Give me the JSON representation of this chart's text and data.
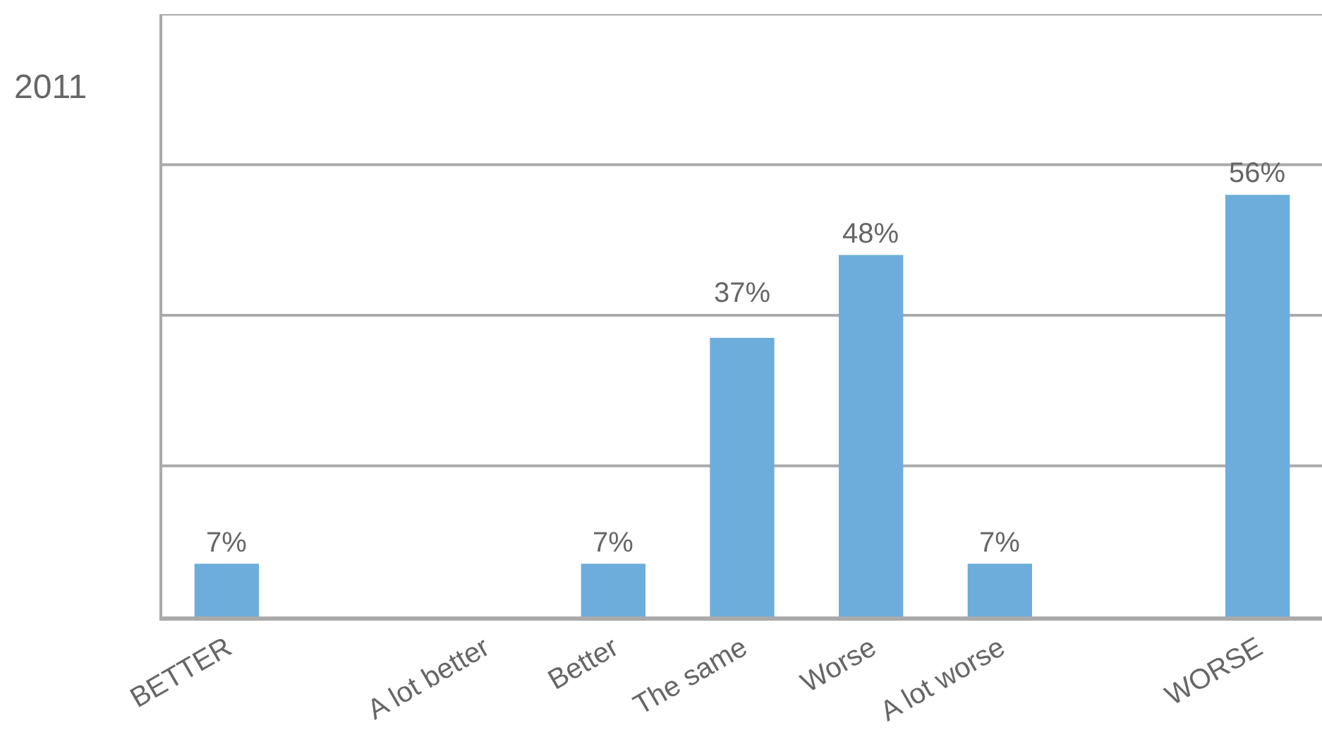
{
  "chart_data": {
    "type": "bar",
    "title": "2011",
    "categories": [
      "BETTER",
      null,
      "A lot better",
      "Better",
      "The same",
      "Worse",
      "A lot worse",
      null,
      "WORSE"
    ],
    "values": [
      7,
      null,
      null,
      7,
      37,
      48,
      7,
      null,
      56
    ],
    "value_labels": [
      "7%",
      null,
      null,
      "7%",
      "37%",
      "48%",
      "7%",
      null,
      "56%"
    ],
    "color": "#6daddb",
    "ylim": [
      0,
      80
    ],
    "yticks": [
      {
        "value": 0,
        "label": null
      },
      {
        "value": 20,
        "label": null
      },
      {
        "value": 40,
        "label": null
      },
      {
        "value": 60,
        "label": null
      },
      {
        "value": 80,
        "label": null
      }
    ],
    "tick_labels": "x",
    "grid": "y"
  }
}
